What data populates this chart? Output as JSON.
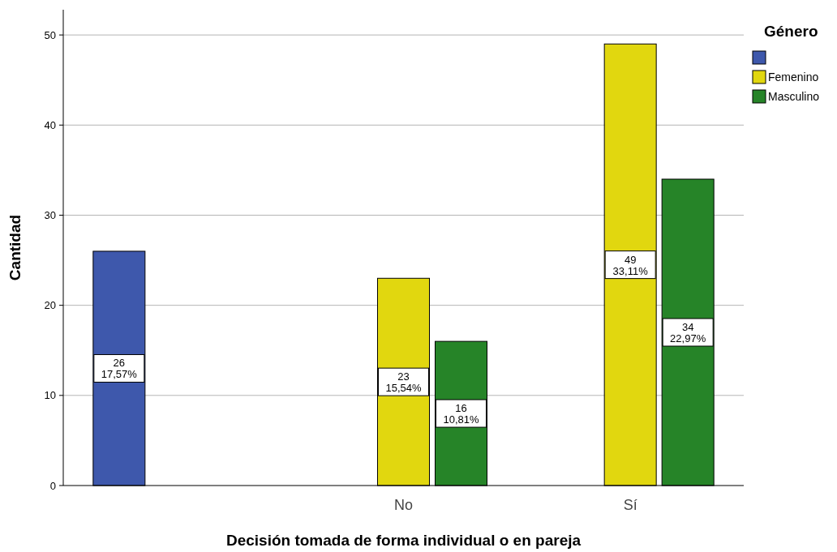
{
  "chart_data": {
    "type": "bar",
    "xlabel": "Decisión tomada de forma individual o en pareja",
    "ylabel": "Cantidad",
    "legend_title": "Género",
    "categories": [
      null,
      "No",
      "Sí"
    ],
    "series": [
      {
        "color": "#3e58ac",
        "values": [
          26,
          null,
          null
        ],
        "value_labels": [
          "26\n17,57%",
          null,
          null
        ]
      },
      {
        "name": "Femenino",
        "color": "#e1d70f",
        "values": [
          null,
          23,
          49
        ],
        "value_labels": [
          null,
          "23\n15,54%",
          "49\n33,11%"
        ]
      },
      {
        "name": "Masculino",
        "color": "#268428",
        "values": [
          null,
          16,
          34
        ],
        "value_labels": [
          null,
          "16\n10,81%",
          "34\n22,97%"
        ]
      }
    ],
    "ylim": [
      0,
      52.8
    ],
    "yticks": [
      0,
      10,
      20,
      30,
      40,
      50
    ],
    "grid": "y",
    "legend": "top right"
  }
}
